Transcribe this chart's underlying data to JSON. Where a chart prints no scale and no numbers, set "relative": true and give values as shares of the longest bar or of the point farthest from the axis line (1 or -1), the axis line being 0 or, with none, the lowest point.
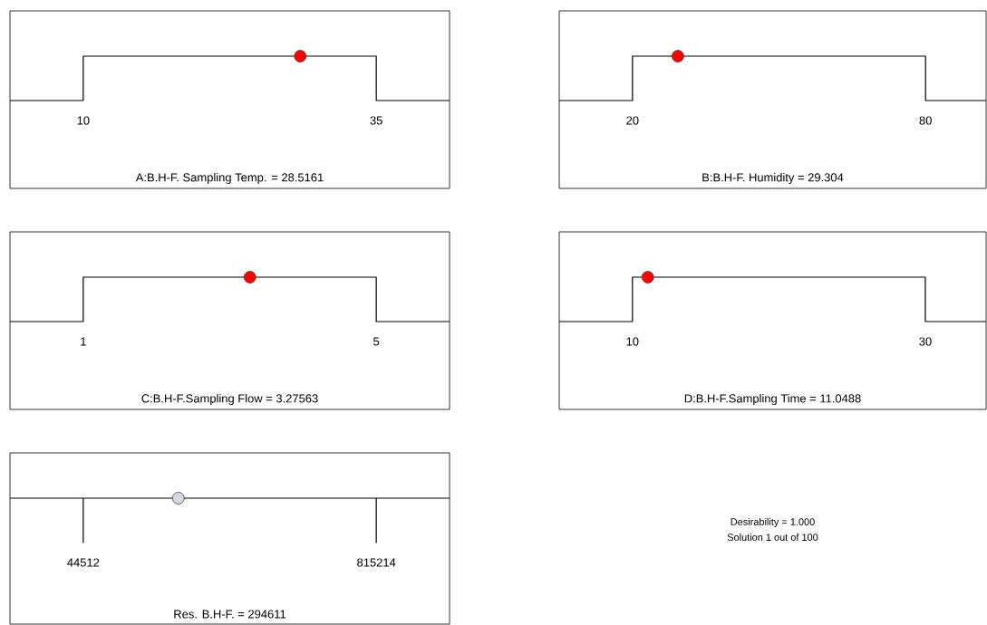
{
  "chart_data": [
    {
      "type": "line",
      "relative": true,
      "xlim": [
        3.75,
        41.25
      ],
      "xticks": [
        10,
        35
      ],
      "xlabel": "A:B.H-F. Sampling Temp. = 28.5161",
      "series": [
        {
          "type": "line",
          "color": "#000000",
          "x": [
            3.75,
            10,
            10,
            35,
            35,
            41.25
          ],
          "values": [
            0,
            0,
            1,
            1,
            0,
            0
          ]
        },
        {
          "type": "scatter",
          "color": "#ff0000",
          "x": [
            28.5161
          ],
          "values": [
            1
          ]
        }
      ]
    },
    {
      "type": "line",
      "relative": true,
      "xlim": [
        5,
        92.4
      ],
      "xticks": [
        20,
        80
      ],
      "xlabel": "B:B.H-F. Humidity = 29.304",
      "series": [
        {
          "type": "line",
          "color": "#000000",
          "x": [
            5,
            20,
            20,
            80,
            80,
            92.4
          ],
          "values": [
            0,
            0,
            1,
            1,
            0,
            0
          ]
        },
        {
          "type": "scatter",
          "color": "#ff0000",
          "x": [
            29.304
          ],
          "values": [
            1
          ]
        }
      ]
    },
    {
      "type": "line",
      "relative": true,
      "xlim": [
        0,
        6
      ],
      "xticks": [
        1,
        5
      ],
      "xlabel": "C:B.H-F.Sampling Flow = 3.27563",
      "series": [
        {
          "type": "line",
          "color": "#000000",
          "x": [
            0,
            1,
            1,
            5,
            5,
            6
          ],
          "values": [
            0,
            0,
            1,
            1,
            0,
            0
          ]
        },
        {
          "type": "scatter",
          "color": "#ff0000",
          "x": [
            3.27563
          ],
          "values": [
            1
          ]
        }
      ]
    },
    {
      "type": "line",
      "relative": true,
      "xlim": [
        5,
        34.15
      ],
      "xticks": [
        10,
        30
      ],
      "xlabel": "D:B.H-F.Sampling Time = 11.0488",
      "series": [
        {
          "type": "line",
          "color": "#000000",
          "x": [
            5,
            10,
            10,
            30,
            30,
            34.15
          ],
          "values": [
            0,
            0,
            1,
            1,
            0,
            0
          ]
        },
        {
          "type": "scatter",
          "color": "#ff0000",
          "x": [
            11.0488
          ],
          "values": [
            1
          ]
        }
      ]
    },
    {
      "type": "line",
      "relative": true,
      "xlim": [
        -148163.5,
        1007889.5
      ],
      "xticks": [
        44512,
        815214
      ],
      "xlabel": "Res. B.H-F. = 294611",
      "series": [
        {
          "type": "line",
          "color": "#000000",
          "x": [
            -148163.5,
            44512,
            44512,
            44512,
            815214,
            815214,
            815214,
            1007889.5
          ],
          "values": [
            1,
            1,
            0,
            1,
            1,
            0,
            1,
            1
          ]
        },
        {
          "type": "scatter",
          "color": "#d3d8e0",
          "x": [
            294611
          ],
          "values": [
            1
          ]
        }
      ]
    },
    {
      "type": "other",
      "annotations": [
        "Desirability = 1.000",
        "Solution 1 out of 100"
      ]
    }
  ]
}
